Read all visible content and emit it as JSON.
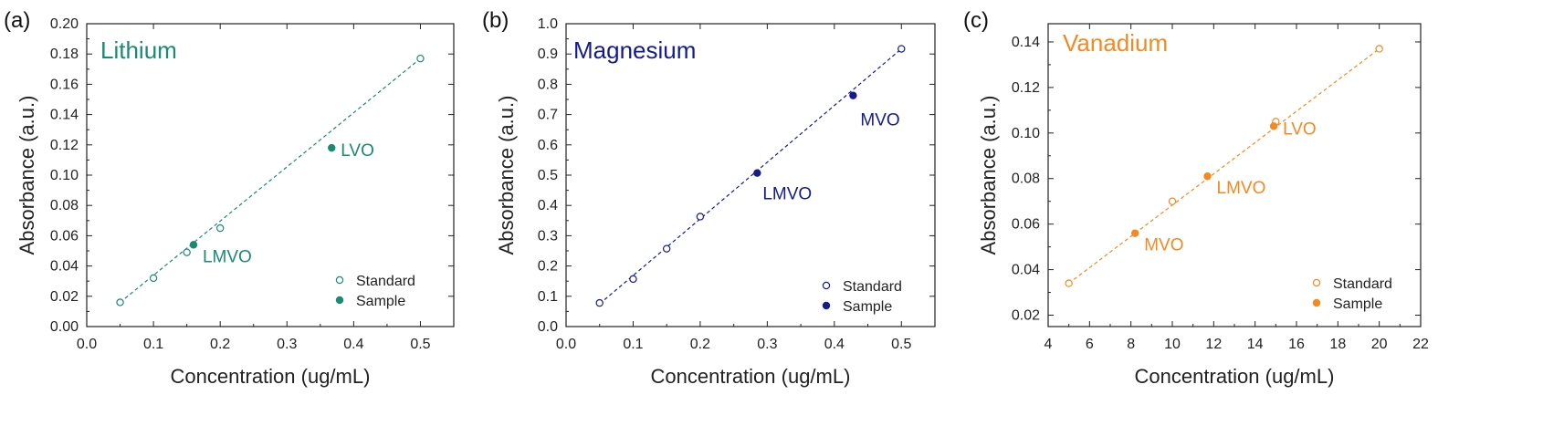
{
  "chart_data": [
    {
      "type": "scatter",
      "panel_label": "(a)",
      "title": "Lithium",
      "color": "#1a8a72",
      "xlabel": "Concentration (ug/mL)",
      "ylabel": "Absorbance (a.u.)",
      "xlim": [
        0.0,
        0.55
      ],
      "ylim": [
        0.0,
        0.2
      ],
      "xticks": [
        "0.0",
        "0.1",
        "0.2",
        "0.3",
        "0.4",
        "0.5"
      ],
      "yticks": [
        "0.00",
        "0.02",
        "0.04",
        "0.06",
        "0.08",
        "0.10",
        "0.12",
        "0.14",
        "0.16",
        "0.18",
        "0.20"
      ],
      "legend_position": "bottom-right",
      "series": [
        {
          "name": "Standard",
          "marker": "open-circle",
          "x": [
            0.05,
            0.1,
            0.15,
            0.2,
            0.5
          ],
          "y": [
            0.016,
            0.032,
            0.049,
            0.065,
            0.177
          ]
        },
        {
          "name": "Sample",
          "marker": "filled-circle",
          "x": [
            0.16,
            0.367
          ],
          "y": [
            0.054,
            0.118
          ],
          "labels": [
            "LMVO",
            "LVO"
          ]
        }
      ],
      "fit_line": {
        "x": [
          0.05,
          0.5
        ],
        "y": [
          0.016,
          0.177
        ],
        "style": "dashed"
      }
    },
    {
      "type": "scatter",
      "panel_label": "(b)",
      "title": "Magnesium",
      "color": "#151a8c",
      "xlabel": "Concentration (ug/mL)",
      "ylabel": "Absorbance (a.u.)",
      "xlim": [
        0.0,
        0.55
      ],
      "ylim": [
        0.0,
        1.0
      ],
      "xticks": [
        "0.0",
        "0.1",
        "0.2",
        "0.3",
        "0.4",
        "0.5"
      ],
      "yticks": [
        "0.0",
        "0.1",
        "0.2",
        "0.3",
        "0.4",
        "0.5",
        "0.6",
        "0.7",
        "0.8",
        "0.9",
        "1.0"
      ],
      "legend_position": "bottom-right",
      "series": [
        {
          "name": "Standard",
          "marker": "open-circle",
          "x": [
            0.05,
            0.1,
            0.15,
            0.2,
            0.5
          ],
          "y": [
            0.078,
            0.157,
            0.257,
            0.363,
            0.917
          ]
        },
        {
          "name": "Sample",
          "marker": "filled-circle",
          "x": [
            0.285,
            0.428
          ],
          "y": [
            0.507,
            0.763
          ],
          "labels": [
            "LMVO",
            "MVO"
          ]
        }
      ],
      "fit_line": {
        "x": [
          0.05,
          0.5
        ],
        "y": [
          0.075,
          0.917
        ],
        "style": "dashed"
      }
    },
    {
      "type": "scatter",
      "panel_label": "(c)",
      "title": "Vanadium",
      "color": "#f5891f",
      "xlabel": "Concentration (ug/mL)",
      "ylabel": "Absorbance (a.u.)",
      "xlim": [
        4,
        22
      ],
      "ylim": [
        0.015,
        0.148
      ],
      "xticks": [
        "4",
        "6",
        "8",
        "10",
        "12",
        "14",
        "16",
        "18",
        "20",
        "22"
      ],
      "yticks": [
        "0.02",
        "0.04",
        "0.06",
        "0.08",
        "0.10",
        "0.12",
        "0.14"
      ],
      "legend_position": "bottom-right",
      "series": [
        {
          "name": "Standard",
          "marker": "open-circle",
          "x": [
            5,
            10,
            15,
            20
          ],
          "y": [
            0.034,
            0.07,
            0.105,
            0.137
          ]
        },
        {
          "name": "Sample",
          "marker": "filled-circle",
          "x": [
            8.2,
            11.7,
            14.9
          ],
          "y": [
            0.056,
            0.081,
            0.103
          ],
          "labels": [
            "MVO",
            "LMVO",
            "LVO"
          ]
        }
      ],
      "fit_line": {
        "x": [
          5,
          20
        ],
        "y": [
          0.034,
          0.137
        ],
        "style": "dashed"
      }
    }
  ]
}
